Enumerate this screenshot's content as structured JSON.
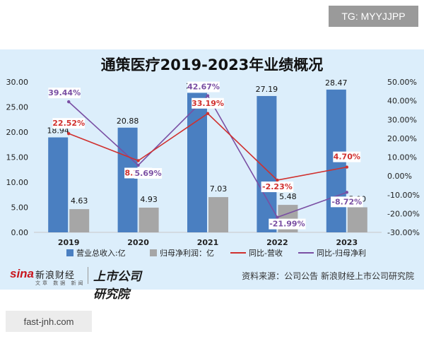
{
  "watermark_top": "TG: MYYJJPP",
  "watermark_bottom": "fast-jnh.com",
  "footer": {
    "logo_sina": "sina",
    "logo_sina_name": "新浪财经",
    "logo_sina_sub": "文章 数据 新闻",
    "logo_research": "上市公司研究院",
    "source": "资料来源：公司公告 新浪财经上市公司研究院"
  },
  "colors": {
    "revenue_bar": "#4a7fc1",
    "profit_bar": "#a6a6a6",
    "revenue_growth_line": "#d0302e",
    "profit_growth_line": "#7a4fa3",
    "background": "#dceefb"
  },
  "chart_data": {
    "type": "bar",
    "title": "通策医疗2019-2023年业绩概况",
    "categories": [
      "2019",
      "2020",
      "2021",
      "2022",
      "2023"
    ],
    "series": [
      {
        "name": "营业总收入:亿",
        "kind": "bar",
        "axis": "left",
        "values": [
          18.94,
          20.88,
          27.81,
          27.19,
          28.47
        ],
        "labels": [
          "18.94",
          "20.88",
          "27.81",
          "27.19",
          "28.47"
        ]
      },
      {
        "name": "归母净利润：亿",
        "kind": "bar",
        "axis": "left",
        "values": [
          4.63,
          4.93,
          7.03,
          5.48,
          5.0
        ],
        "labels": [
          "4.63",
          "4.93",
          "7.03",
          "5.48",
          "5.00"
        ]
      },
      {
        "name": "同比-营收",
        "kind": "line",
        "axis": "right",
        "values": [
          22.52,
          8.12,
          33.19,
          -2.23,
          4.7
        ],
        "labels": [
          "22.52%",
          "8.12%",
          "33.19%",
          "-2.23%",
          "4.70%"
        ]
      },
      {
        "name": "同比-归母净利",
        "kind": "line",
        "axis": "right",
        "values": [
          39.44,
          5.69,
          42.67,
          -21.99,
          -8.72
        ],
        "labels": [
          "39.44%",
          "5.69%",
          "42.67%",
          "-21.99%",
          "-8.72%"
        ]
      }
    ],
    "y_left": {
      "range": [
        0,
        30
      ],
      "ticks": [
        "0.00",
        "5.00",
        "10.00",
        "15.00",
        "20.00",
        "25.00",
        "30.00"
      ]
    },
    "y_right": {
      "range": [
        -30,
        50
      ],
      "ticks": [
        "-30.00%",
        "-20.00%",
        "-10.00%",
        "0.00%",
        "10.00%",
        "20.00%",
        "30.00%",
        "40.00%",
        "50.00%"
      ]
    },
    "grid": false,
    "legend_position": "bottom"
  }
}
